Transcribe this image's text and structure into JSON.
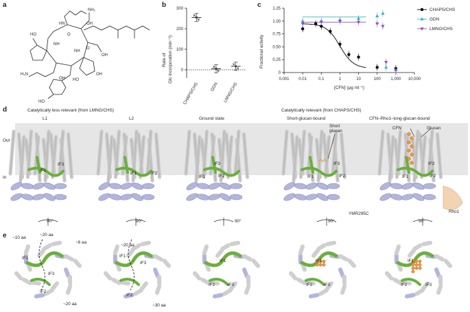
{
  "panels": {
    "a": "a",
    "b": "b",
    "c": "c",
    "d": "d",
    "e": "e"
  },
  "panel_b": {
    "ylabel_line1": "Rate of",
    "ylabel_line2": "Glc incorporation (min⁻¹)",
    "yticks": [
      "0",
      "100",
      "200",
      "300"
    ],
    "categories": [
      "CHAPS/CHS",
      "GDN",
      "LMNG/CHS"
    ],
    "values": [
      255,
      5,
      17
    ]
  },
  "panel_c": {
    "ylabel": "Fractional activity",
    "xlabel": "[CFN] (μg ml⁻¹)",
    "yticks": [
      "0",
      "0.25",
      "0.50",
      "0.75",
      "1.00",
      "1.25"
    ],
    "xticks": [
      "0.001",
      "0.01",
      "0.1",
      "1",
      "10",
      "100",
      "1,000",
      "10,000"
    ],
    "legend": [
      {
        "label": "CHAPS/CHS",
        "color": "#000000",
        "marker": "circle"
      },
      {
        "label": "GDN",
        "color": "#29b6c6",
        "marker": "triangle-up"
      },
      {
        "label": "LMNG/CHS",
        "color": "#8e4fc0",
        "marker": "triangle-down"
      }
    ]
  },
  "chart_data": [
    {
      "type": "scatter",
      "title": "",
      "ylabel": "Rate of Glc incorporation (min⁻¹)",
      "categories": [
        "CHAPS/CHS",
        "GDN",
        "LMNG/CHS"
      ],
      "values": [
        255,
        5,
        17
      ],
      "ylim": [
        -40,
        300
      ]
    },
    {
      "type": "line",
      "xlabel": "[CFN] (μg ml⁻¹)",
      "ylabel": "Fractional activity",
      "x_scale": "log",
      "xlim": [
        0.001,
        10000
      ],
      "ylim": [
        0,
        1.25
      ],
      "series": [
        {
          "name": "CHAPS/CHS",
          "x": [
            0.01,
            0.05,
            0.1,
            0.3,
            1,
            3,
            10,
            100,
            1000
          ],
          "y": [
            0.85,
            0.95,
            0.9,
            0.8,
            0.55,
            0.35,
            0.3,
            0.1,
            0.08
          ]
        },
        {
          "name": "GDN",
          "x": [
            0.01,
            0.1,
            1,
            10,
            100,
            200,
            300,
            1000
          ],
          "y": [
            1.0,
            1.0,
            1.02,
            1.05,
            1.1,
            1.15,
            0.1,
            0.05
          ]
        },
        {
          "name": "LMNG/CHS",
          "x": [
            0.01,
            0.1,
            1,
            10,
            100,
            200,
            300,
            1000
          ],
          "y": [
            0.95,
            0.98,
            1.0,
            0.98,
            0.95,
            0.9,
            0.2,
            0.05
          ]
        }
      ]
    }
  ],
  "panel_d": {
    "group_left": "Catalytically less relevant (from LMNG/CHS)",
    "group_right": "Catalytically relevant (from CHAPS/CHS)",
    "titles": [
      "L1",
      "L2",
      "Ground state",
      "Short-glucan-bound",
      "CFN–Rho1–long-glucan-bound"
    ],
    "out_label": "Out",
    "in_label": "In",
    "rotation": "90°",
    "labels": {
      "if1": "IF1",
      "if2": "IF2",
      "if3": "IF3",
      "short_glucan": "Short\nglucan",
      "cfn": "CFN",
      "glucan": "Glucan",
      "rho1": "Rho1",
      "ymr": "YMR295C"
    }
  },
  "panel_e": {
    "labels": {
      "l1_a": "~10 aa",
      "l1_b": "~20 aa",
      "l1_c": "~6 aa",
      "l1_d": "~20 aa",
      "l2_a": "~20 aa",
      "l2_b": "~30 aa",
      "if1": "IF1",
      "if2": "IF2",
      "if3": "IF3"
    }
  }
}
